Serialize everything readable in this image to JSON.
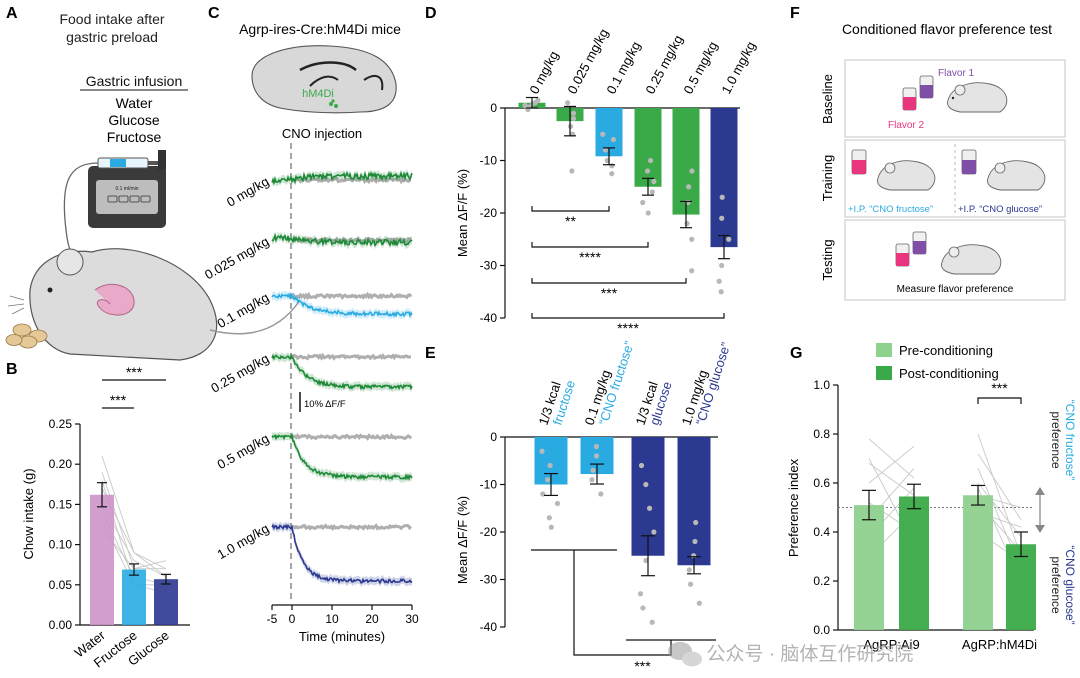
{
  "panels": {
    "A": {
      "letter": "A",
      "title_line1": "Food intake after",
      "title_line2": "gastric preload",
      "infusion_heading": "Gastric infusion",
      "infusates": [
        "Water",
        "Glucose",
        "Fructose"
      ],
      "pump_display": "0.1 ml/min"
    },
    "B": {
      "letter": "B"
    },
    "C": {
      "letter": "C",
      "mouse_line": "Agrp-ires-Cre:hM4Di mice",
      "brain_label": "hM4Di",
      "injection_label": "CNO injection",
      "scale_bar_label": "10% ΔF/F",
      "xlabel": "Time (minutes)",
      "xticks": [
        "-5",
        "0",
        "10",
        "20",
        "30"
      ]
    },
    "D": {
      "letter": "D"
    },
    "E": {
      "letter": "E"
    },
    "F": {
      "letter": "F",
      "title": "Conditioned flavor preference test",
      "row_labels": [
        "Baseline",
        "Training",
        "Testing"
      ],
      "flavor1": "Flavor 1",
      "flavor2": "Flavor 2",
      "training_left": "+I.P. “CNO fructose”",
      "training_right": "+I.P. “CNO glucose”",
      "testing_caption": "Measure flavor preference"
    },
    "G": {
      "letter": "G"
    }
  },
  "watermark": "公众号 · 脑体互作研究院",
  "colors": {
    "water": "#cc94c8",
    "fructose": "#29abe2",
    "glucose": "#2b3990",
    "green_light": "#8fd18f",
    "green_dark": "#3aaa48",
    "green_trace": "#1e8a38",
    "grey_trace": "#a6a6a6",
    "pink_flavor": "#e8357e",
    "purple_flavor": "#7f4fa8"
  },
  "chart_data": [
    {
      "panel": "B",
      "type": "bar",
      "ylabel": "Chow intake (g)",
      "ylim": [
        0,
        0.25
      ],
      "yticks": [
        "0.00",
        "0.05",
        "0.10",
        "0.15",
        "0.20",
        "0.25"
      ],
      "categories": [
        "Water",
        "Fructose",
        "Glucose"
      ],
      "values": [
        0.162,
        0.069,
        0.057
      ],
      "sem": [
        0.015,
        0.007,
        0.006
      ],
      "colors": [
        "#cc94c8",
        "#29abe2",
        "#2b3990"
      ],
      "paired_lines": [
        [
          0.21,
          0.09,
          0.06
        ],
        [
          0.19,
          0.07,
          0.07
        ],
        [
          0.18,
          0.05,
          0.05
        ],
        [
          0.15,
          0.08,
          0.06
        ],
        [
          0.14,
          0.06,
          0.05
        ],
        [
          0.13,
          0.05,
          0.04
        ],
        [
          0.17,
          0.09,
          0.07
        ],
        [
          0.12,
          0.07,
          0.08
        ]
      ],
      "significance": [
        {
          "from": 0,
          "to": 1,
          "label": "***"
        },
        {
          "from": 0,
          "to": 2,
          "label": "***"
        }
      ]
    },
    {
      "panel": "C",
      "type": "line",
      "xlabel": "Time (minutes)",
      "xlim": [
        -5,
        30
      ],
      "series": [
        {
          "name": "0 mg/kg",
          "final_dff": 0.0,
          "color": "#1e8a38"
        },
        {
          "name": "0.025 mg/kg",
          "final_dff": -2,
          "color": "#1e8a38"
        },
        {
          "name": "0.1 mg/kg",
          "final_dff": -9,
          "color": "#29abe2"
        },
        {
          "name": "0.25 mg/kg",
          "final_dff": -15,
          "color": "#1e8a38"
        },
        {
          "name": "0.5 mg/kg",
          "final_dff": -20,
          "color": "#1e8a38"
        },
        {
          "name": "1.0 mg/kg",
          "final_dff": -27,
          "color": "#2b3990"
        }
      ]
    },
    {
      "panel": "D",
      "type": "bar",
      "ylabel": "Mean ΔF/F (%)",
      "ylim": [
        -40,
        0
      ],
      "yticks": [
        "0",
        "-10",
        "-20",
        "-30",
        "-40"
      ],
      "categories": [
        "0 mg/kg",
        "0.025 mg/kg",
        "0.1 mg/kg",
        "0.25 mg/kg",
        "0.5 mg/kg",
        "1.0 mg/kg"
      ],
      "values": [
        1.0,
        -2.5,
        -9.2,
        -15.0,
        -20.3,
        -26.5
      ],
      "sem": [
        1.0,
        2.8,
        1.6,
        1.6,
        2.5,
        2.2
      ],
      "colors": [
        "#3aaa48",
        "#3aaa48",
        "#29abe2",
        "#3aaa48",
        "#3aaa48",
        "#2b3990"
      ],
      "points": [
        [
          0.5,
          1.5,
          0.2,
          -0.3,
          1.0,
          0.8
        ],
        [
          1.0,
          -1.0,
          -2.0,
          -3.5,
          -5.0,
          -12.0
        ],
        [
          -6.0,
          -8.0,
          -10.0,
          -11.0,
          -12.5,
          -5.0
        ],
        [
          -10.0,
          -12.0,
          -14.0,
          -16.0,
          -18.0,
          -20.0
        ],
        [
          -12.0,
          -15.0,
          -18.0,
          -22.0,
          -25.0,
          -31.0
        ],
        [
          -17.0,
          -21.0,
          -25.0,
          -30.0,
          -33.0,
          -35.0
        ]
      ],
      "significance": [
        {
          "from": 0,
          "to": 2,
          "label": "**"
        },
        {
          "from": 0,
          "to": 3,
          "label": "****"
        },
        {
          "from": 0,
          "to": 4,
          "label": "***"
        },
        {
          "from": 0,
          "to": 5,
          "label": "****"
        }
      ]
    },
    {
      "panel": "E",
      "type": "bar",
      "ylabel": "Mean ΔF/F (%)",
      "ylim": [
        -40,
        0
      ],
      "yticks": [
        "0",
        "-10",
        "-20",
        "-30",
        "-40"
      ],
      "categories": [
        {
          "line1": "1/3 kcal",
          "line2": "fructose"
        },
        {
          "line1": "0.1 mg/kg",
          "line2": "“CNO fructose”"
        },
        {
          "line1": "1/3 kcal",
          "line2": "glucose"
        },
        {
          "line1": "1.0 mg/kg",
          "line2": "“CNO glucose”"
        }
      ],
      "values": [
        -10.0,
        -7.8,
        -25.0,
        -27.0
      ],
      "sem": [
        2.3,
        2.1,
        4.2,
        1.8
      ],
      "colors": [
        "#29abe2",
        "#29abe2",
        "#2b3990",
        "#2b3990"
      ],
      "points": [
        [
          -3.0,
          -6.0,
          -9.0,
          -12.0,
          -14.0,
          -17.0,
          -19.0
        ],
        [
          -2.0,
          -4.0,
          -7.0,
          -9.0,
          -12.0
        ],
        [
          -6.0,
          -10.0,
          -15.0,
          -20.0,
          -26.0,
          -33.0,
          -36.0,
          -39.0
        ],
        [
          -18.0,
          -22.0,
          -25.0,
          -28.0,
          -31.0,
          -35.0
        ]
      ],
      "significance": [
        {
          "from": [
            0,
            1
          ],
          "to": [
            2,
            3
          ],
          "label": "***"
        }
      ]
    },
    {
      "panel": "G",
      "type": "bar",
      "ylabel": "Preference index",
      "ylim": [
        0,
        1.0
      ],
      "yticks": [
        "0.0",
        "0.2",
        "0.4",
        "0.6",
        "0.8",
        "1.0"
      ],
      "categories": [
        "AgRP:Ai9",
        "AgRP:hM4Di"
      ],
      "series": [
        {
          "name": "Pre-conditioning",
          "values": [
            0.51,
            0.55
          ],
          "sem": [
            0.06,
            0.04
          ],
          "color": "#8fd18f"
        },
        {
          "name": "Post-conditioning",
          "values": [
            0.545,
            0.35
          ],
          "sem": [
            0.05,
            0.05
          ],
          "color": "#3aaa48"
        }
      ],
      "reference_line": 0.5,
      "side_labels": {
        "top_line1": "“CNO fructose”",
        "top_line2": "preference",
        "bottom_line1": "“CNO glucose”",
        "bottom_line2": "preference"
      },
      "paired_lines": [
        [
          [
            0.78,
            0.62
          ],
          [
            0.68,
            0.55
          ],
          [
            0.6,
            0.75
          ],
          [
            0.45,
            0.66
          ],
          [
            0.38,
            0.58
          ],
          [
            0.52,
            0.4
          ],
          [
            0.3,
            0.48
          ],
          [
            0.7,
            0.35
          ]
        ],
        [
          [
            0.8,
            0.3
          ],
          [
            0.72,
            0.45
          ],
          [
            0.66,
            0.25
          ],
          [
            0.6,
            0.38
          ],
          [
            0.58,
            0.2
          ],
          [
            0.52,
            0.32
          ],
          [
            0.48,
            0.42
          ],
          [
            0.4,
            0.28
          ],
          [
            0.55,
            0.5
          ]
        ]
      ],
      "significance": [
        {
          "category": 1,
          "label": "***"
        }
      ]
    }
  ]
}
